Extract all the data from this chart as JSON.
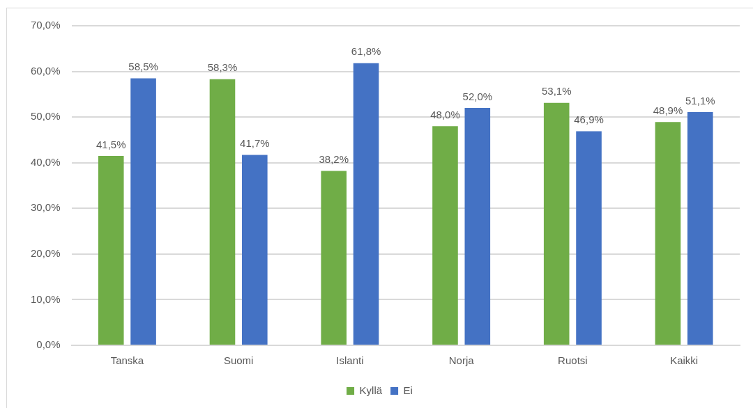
{
  "chart_data": {
    "type": "bar",
    "categories": [
      "Tanska",
      "Suomi",
      "Islanti",
      "Norja",
      "Ruotsi",
      "Kaikki"
    ],
    "series": [
      {
        "name": "Kyllä",
        "color": "#70ad47",
        "values": [
          41.5,
          58.3,
          38.2,
          48.0,
          53.1,
          48.9
        ],
        "value_labels": [
          "41,5%",
          "58,3%",
          "38,2%",
          "48,0%",
          "53,1%",
          "48,9%"
        ]
      },
      {
        "name": "Ei",
        "color": "#4472c4",
        "values": [
          58.5,
          41.7,
          61.8,
          52.0,
          46.9,
          51.1
        ],
        "value_labels": [
          "58,5%",
          "41,7%",
          "61,8%",
          "52,0%",
          "46,9%",
          "51,1%"
        ]
      }
    ],
    "ylim": [
      0,
      70
    ],
    "yticks": [
      {
        "value": 0,
        "label": "0,0%"
      },
      {
        "value": 10,
        "label": "10,0%"
      },
      {
        "value": 20,
        "label": "20,0%"
      },
      {
        "value": 30,
        "label": "30,0%"
      },
      {
        "value": 40,
        "label": "40,0%"
      },
      {
        "value": 50,
        "label": "50,0%"
      },
      {
        "value": 60,
        "label": "60,0%"
      },
      {
        "value": 70,
        "label": "70,0%"
      }
    ],
    "grid": "y",
    "legend": "bottom"
  }
}
